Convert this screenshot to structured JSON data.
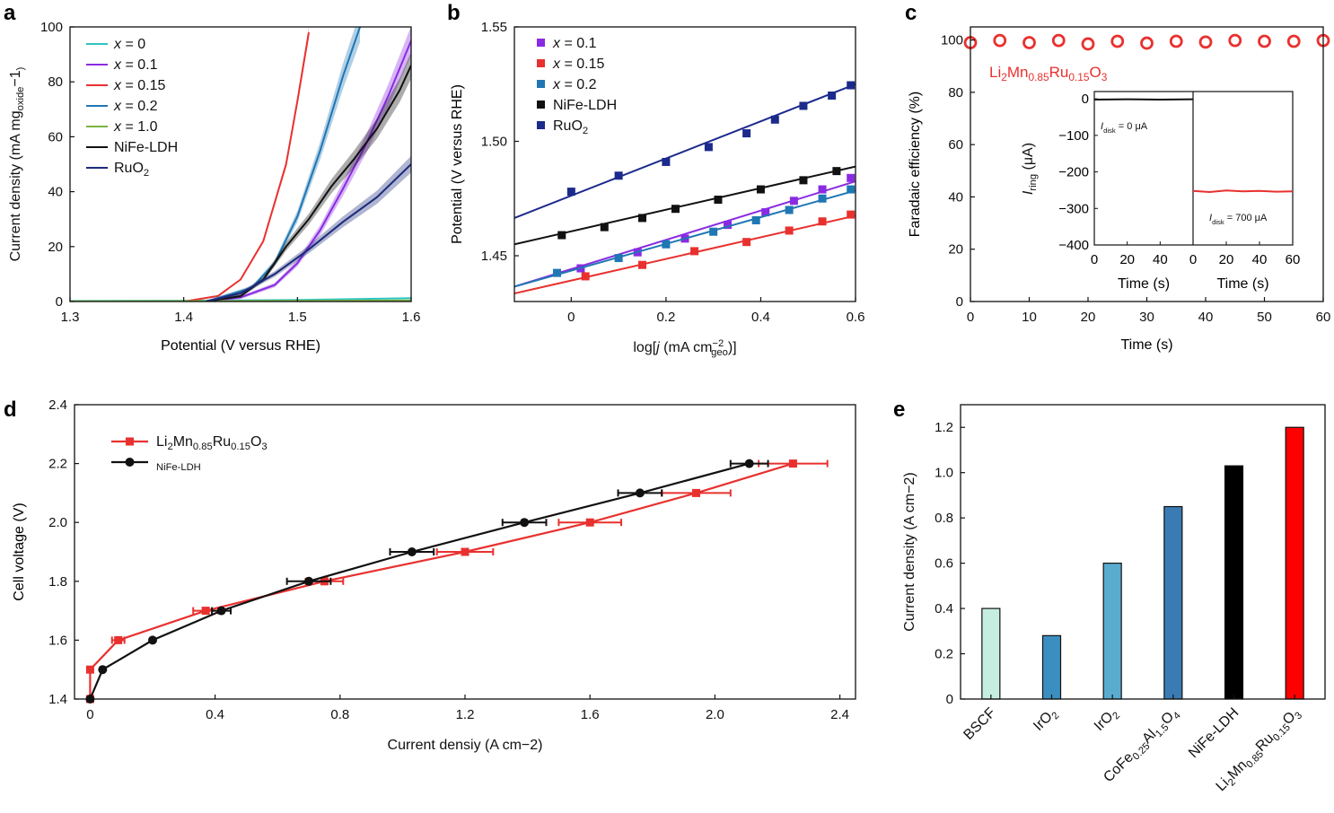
{
  "panel_labels": {
    "a": "a",
    "b": "b",
    "c": "c",
    "d": "d",
    "e": "e"
  },
  "chart_data": [
    {
      "panel": "a",
      "type": "line",
      "xlabel": "Potential (V versus RHE)",
      "ylabel_parts": [
        "Current density (mA mg",
        "oxide",
        "−1",
        ")"
      ],
      "xlim": [
        1.3,
        1.6
      ],
      "ylim": [
        0,
        100
      ],
      "xticks": [
        "1.3",
        "1.4",
        "1.5",
        "1.6"
      ],
      "yticks": [
        "0",
        "20",
        "40",
        "60",
        "80",
        "100"
      ],
      "legend_position": "top-left",
      "series": [
        {
          "name": "x = 0",
          "legend_parts": [
            "x",
            " = 0"
          ],
          "color": "#2ec4c4",
          "band": 0,
          "x": [
            1.3,
            1.4,
            1.5,
            1.6
          ],
          "y": [
            0.2,
            0.3,
            0.6,
            1.2
          ]
        },
        {
          "name": "x = 0.1",
          "legend_parts": [
            "x",
            " = 0.1"
          ],
          "color": "#8a2be2",
          "band": 5,
          "x": [
            1.42,
            1.45,
            1.48,
            1.5,
            1.52,
            1.54,
            1.56,
            1.58,
            1.6
          ],
          "y": [
            0,
            1.5,
            6,
            14,
            26,
            41,
            57,
            75,
            95
          ]
        },
        {
          "name": "x = 0.15",
          "legend_parts": [
            "x",
            " = 0.15"
          ],
          "color": "#e8312f",
          "band": 2,
          "x": [
            1.4,
            1.43,
            1.45,
            1.47,
            1.49,
            1.5,
            1.51
          ],
          "y": [
            0,
            2,
            8,
            22,
            50,
            73,
            98
          ]
        },
        {
          "name": "x = 0.2",
          "legend_parts": [
            "x",
            " = 0.2"
          ],
          "color": "#1f77b4",
          "band": 5,
          "x": [
            1.42,
            1.46,
            1.48,
            1.5,
            1.52,
            1.54,
            1.555
          ],
          "y": [
            0,
            5,
            14,
            31,
            55,
            82,
            100
          ]
        },
        {
          "name": "x = 1.0",
          "legend_parts": [
            "x",
            " = 1.0"
          ],
          "color": "#7cb342",
          "band": 0,
          "x": [
            1.3,
            1.45,
            1.6
          ],
          "y": [
            0.1,
            0.2,
            0.4
          ]
        },
        {
          "name": "NiFe-LDH",
          "legend_parts": [
            "",
            "NiFe-LDH"
          ],
          "color": "#111111",
          "band": 5,
          "x": [
            1.42,
            1.45,
            1.47,
            1.49,
            1.51,
            1.53,
            1.55,
            1.57,
            1.59,
            1.6
          ],
          "y": [
            0,
            2,
            8,
            20,
            30,
            42,
            52,
            63,
            77,
            86
          ]
        },
        {
          "name": "RuO2",
          "legend_parts": [
            "",
            "RuO",
            "2"
          ],
          "color": "#1c2a7a",
          "band": 5,
          "x": [
            1.42,
            1.45,
            1.48,
            1.51,
            1.54,
            1.57,
            1.6
          ],
          "y": [
            0,
            3,
            10,
            19,
            29,
            38,
            50
          ]
        }
      ]
    },
    {
      "panel": "b",
      "type": "scatter",
      "xlabel_parts": [
        "log[",
        "j",
        " (mA cm",
        "−2",
        "geo",
        ")]"
      ],
      "ylabel": "Potential (V versus RHE)",
      "xlim": [
        -0.12,
        0.6
      ],
      "ylim": [
        1.43,
        1.55
      ],
      "xticks": [
        "0",
        "0.2",
        "0.4",
        "0.6"
      ],
      "yticks": [
        "1.45",
        "1.50",
        "1.55"
      ],
      "legend_position": "top-left",
      "series": [
        {
          "name": "x = 0.1",
          "legend_parts": [
            "x",
            " = 0.1"
          ],
          "color": "#8a2be2",
          "x": [
            0.02,
            0.14,
            0.24,
            0.33,
            0.41,
            0.47,
            0.53,
            0.59
          ],
          "y": [
            1.4445,
            1.4515,
            1.4575,
            1.4635,
            1.469,
            1.474,
            1.479,
            1.484
          ],
          "fit": [
            [
              -0.12,
              1.4365
            ],
            [
              0.6,
              1.4825
            ]
          ]
        },
        {
          "name": "x = 0.15",
          "legend_parts": [
            "x",
            " = 0.15"
          ],
          "color": "#e8312f",
          "x": [
            0.03,
            0.15,
            0.26,
            0.37,
            0.46,
            0.53,
            0.59
          ],
          "y": [
            1.441,
            1.446,
            1.452,
            1.456,
            1.461,
            1.465,
            1.468
          ],
          "fit": [
            [
              -0.12,
              1.4335
            ],
            [
              0.6,
              1.4675
            ]
          ]
        },
        {
          "name": "x = 0.2",
          "legend_parts": [
            "x",
            " = 0.2"
          ],
          "color": "#1f77b4",
          "x": [
            -0.03,
            0.1,
            0.2,
            0.3,
            0.39,
            0.46,
            0.53,
            0.59
          ],
          "y": [
            1.4425,
            1.449,
            1.455,
            1.4605,
            1.4655,
            1.47,
            1.475,
            1.479
          ],
          "fit": [
            [
              -0.12,
              1.4365
            ],
            [
              0.6,
              1.4785
            ]
          ]
        },
        {
          "name": "NiFe-LDH",
          "legend_parts": [
            "",
            "NiFe-LDH"
          ],
          "color": "#111111",
          "x": [
            -0.02,
            0.07,
            0.15,
            0.22,
            0.31,
            0.4,
            0.49,
            0.56
          ],
          "y": [
            1.459,
            1.4625,
            1.4665,
            1.4705,
            1.4745,
            1.479,
            1.483,
            1.487
          ],
          "fit": [
            [
              -0.12,
              1.455
            ],
            [
              0.6,
              1.489
            ]
          ]
        },
        {
          "name": "RuO2",
          "legend_parts": [
            "",
            "RuO",
            "2"
          ],
          "color": "#1c2a8c",
          "x": [
            0,
            0.1,
            0.2,
            0.29,
            0.37,
            0.43,
            0.49,
            0.55,
            0.59
          ],
          "y": [
            1.478,
            1.485,
            1.491,
            1.4975,
            1.5035,
            1.5095,
            1.5155,
            1.52,
            1.5245
          ],
          "fit": [
            [
              -0.12,
              1.4665
            ],
            [
              0.6,
              1.525
            ]
          ]
        }
      ]
    },
    {
      "panel": "c",
      "type": "scatter",
      "xlabel": "Time (s)",
      "ylabel": "Faradaic efficiency (%)",
      "xlim": [
        0,
        60
      ],
      "ylim": [
        0,
        105
      ],
      "xticks": [
        "0",
        "10",
        "20",
        "30",
        "40",
        "50",
        "60"
      ],
      "yticks": [
        "0",
        "20",
        "40",
        "60",
        "80",
        "100"
      ],
      "annotation_parts": [
        "Li",
        "2",
        "Mn",
        "0.85",
        "Ru",
        "0.15",
        "O",
        "3"
      ],
      "color": "#e8312f",
      "x": [
        0,
        5,
        10,
        15,
        20,
        25,
        30,
        35,
        40,
        45,
        50,
        55,
        60
      ],
      "y": [
        99,
        99.8,
        99,
        99.8,
        98.5,
        99.5,
        98.8,
        99.5,
        99.2,
        99.8,
        99.5,
        99.5,
        99.8
      ],
      "inset": {
        "ylabel_parts": [
          "I",
          "ring",
          " (μA)"
        ],
        "ylim": [
          -400,
          20
        ],
        "yticks": [
          "0",
          "−100",
          "−200",
          "−300",
          "−400"
        ],
        "xlim": [
          0,
          60
        ],
        "xticks": [
          "0",
          "20",
          "40",
          "60"
        ],
        "left_xticks": [
          "0",
          "20",
          "40"
        ],
        "xlabel_left": "Time (s)",
        "xlabel_right": "Time (s)",
        "left_label_parts": [
          "I",
          "disk",
          " = 0 μA"
        ],
        "right_label_parts": [
          "I",
          "disk",
          " = 700 μA"
        ],
        "left_series": {
          "color": "#111111",
          "x": [
            0,
            20,
            40,
            60
          ],
          "y": [
            -2,
            -1,
            -2,
            -1
          ]
        },
        "right_series": {
          "color": "#e8312f",
          "x": [
            0,
            10,
            20,
            30,
            40,
            50,
            60
          ],
          "y": [
            -252,
            -255,
            -251,
            -253,
            -252,
            -254,
            -253
          ]
        }
      }
    },
    {
      "panel": "d",
      "type": "line",
      "xlabel_parts": [
        "Current densiy (A cm",
        "−2",
        ")"
      ],
      "ylabel": "Cell voltage (V)",
      "xlim": [
        -0.05,
        2.45
      ],
      "ylim": [
        1.4,
        2.4
      ],
      "xticks": [
        "0",
        "0.4",
        "0.8",
        "1.2",
        "1.6",
        "2.0",
        "2.4"
      ],
      "yticks": [
        "1.4",
        "1.6",
        "1.8",
        "2.0",
        "2.2",
        "2.4"
      ],
      "legend_position": "top-left",
      "series": [
        {
          "name": "Li2Mn0.85Ru0.15O3",
          "legend_parts": [
            "Li",
            "2",
            "Mn",
            "0.85",
            "Ru",
            "0.15",
            "O",
            "3"
          ],
          "color": "#e8312f",
          "marker": "square",
          "x": [
            0,
            0,
            0.09,
            0.37,
            0.75,
            1.2,
            1.6,
            1.94,
            2.25
          ],
          "y": [
            1.4,
            1.5,
            1.6,
            1.7,
            1.8,
            1.9,
            2.0,
            2.1,
            2.2
          ],
          "xerr": [
            0,
            0,
            0.02,
            0.04,
            0.06,
            0.09,
            0.1,
            0.11,
            0.11
          ]
        },
        {
          "name": "NiFe-LDH",
          "legend_parts": [
            "",
            "NiFe-LDH"
          ],
          "color": "#111111",
          "marker": "circle",
          "x": [
            0,
            0.04,
            0.2,
            0.42,
            0.7,
            1.03,
            1.39,
            1.76,
            2.11
          ],
          "y": [
            1.4,
            1.5,
            1.6,
            1.7,
            1.8,
            1.9,
            2.0,
            2.1,
            2.2
          ],
          "xerr": [
            0,
            0,
            0,
            0.03,
            0.07,
            0.07,
            0.07,
            0.07,
            0.06
          ]
        }
      ]
    },
    {
      "panel": "e",
      "type": "bar",
      "ylabel_parts": [
        "Current density (A cm",
        "−2",
        ")"
      ],
      "ylim": [
        0,
        1.3
      ],
      "yticks": [
        "0",
        "0.2",
        "0.4",
        "0.6",
        "0.8",
        "1.0",
        "1.2"
      ],
      "categories": [
        {
          "label_parts": [
            "BSCF"
          ]
        },
        {
          "label_parts": [
            "IrO",
            "2"
          ]
        },
        {
          "label_parts": [
            "IrO",
            "2"
          ]
        },
        {
          "label_parts": [
            "CoFe",
            "0.25",
            "Al",
            "1.5",
            "O",
            "4"
          ]
        },
        {
          "label_parts": [
            "NiFe-LDH"
          ]
        },
        {
          "label_parts": [
            "Li",
            "2",
            "Mn",
            "0.85",
            "Ru",
            "0.15",
            "O",
            "3"
          ]
        }
      ],
      "values": [
        0.4,
        0.28,
        0.6,
        0.85,
        1.03,
        1.2
      ],
      "colors": [
        "#c6eee0",
        "#3b8fc0",
        "#5aaccf",
        "#3a7bb3",
        "#000000",
        "#ff0000"
      ]
    }
  ]
}
